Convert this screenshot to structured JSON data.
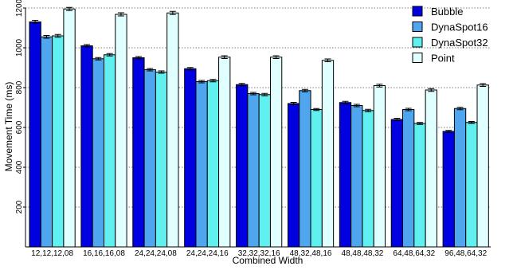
{
  "chart_data": {
    "type": "bar",
    "xlabel": "Combined Width",
    "ylabel": "Movement Time (ms)",
    "ylim": [
      0,
      1200
    ],
    "yticks": [
      200,
      400,
      600,
      800,
      1000,
      1200
    ],
    "grid": true,
    "legend_position": "top-right",
    "error_bars": true,
    "categories": [
      "12,12,12,08",
      "16,16,16,08",
      "24,24,24,08",
      "24,24,24,16",
      "32,32,32,16",
      "48,32,48,16",
      "48,48,48,32",
      "64,48,64,32",
      "96,48,64,32"
    ],
    "series": [
      {
        "name": "Bubble",
        "color": "#0000e0",
        "values": [
          1130,
          1010,
          950,
          895,
          815,
          720,
          725,
          640,
          580
        ],
        "errors": [
          8,
          6,
          6,
          6,
          6,
          6,
          6,
          6,
          5
        ]
      },
      {
        "name": "DynaSpot16",
        "color": "#4fa6ee",
        "values": [
          1055,
          945,
          890,
          830,
          770,
          785,
          710,
          690,
          695
        ],
        "errors": [
          7,
          6,
          6,
          6,
          6,
          6,
          6,
          6,
          6
        ]
      },
      {
        "name": "DynaSpot32",
        "color": "#60f0f0",
        "values": [
          1060,
          965,
          878,
          835,
          765,
          690,
          685,
          620,
          625
        ],
        "errors": [
          7,
          6,
          6,
          6,
          6,
          5,
          6,
          5,
          5
        ]
      },
      {
        "name": "Point",
        "color": "#e0ffff",
        "values": [
          1195,
          1168,
          1175,
          953,
          953,
          937,
          810,
          788,
          813
        ],
        "errors": [
          8,
          8,
          8,
          7,
          7,
          7,
          7,
          7,
          7
        ]
      }
    ]
  }
}
